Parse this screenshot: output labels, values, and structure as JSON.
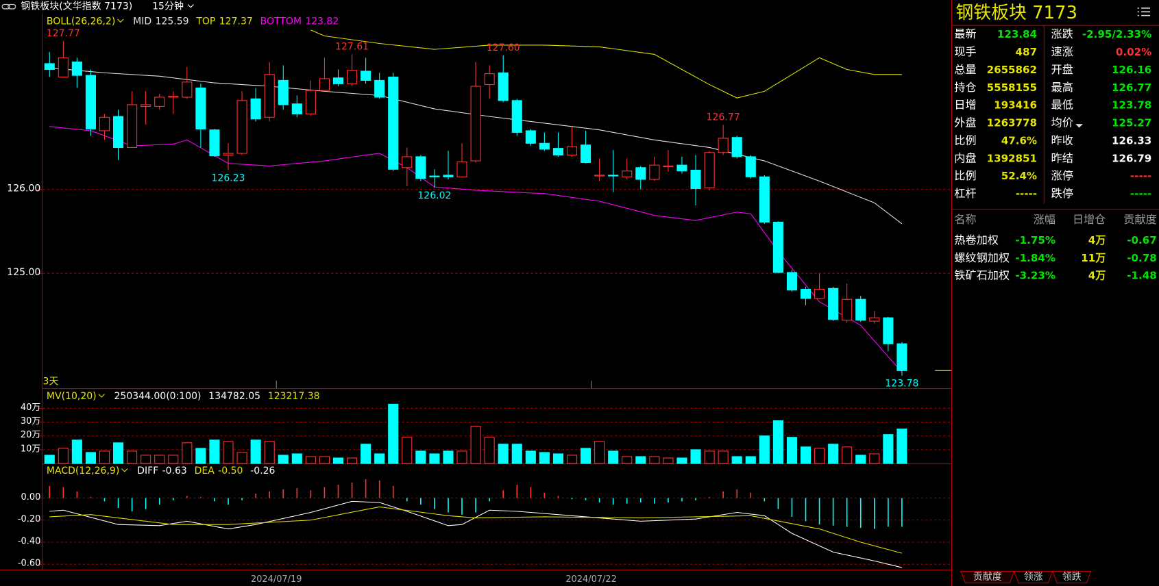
{
  "chart_data": [
    {
      "type": "candlestick",
      "title": "钢铁板块(文华指数 7173)",
      "period": "15分钟",
      "indicator": "BOLL(26,26,2)",
      "label": "3天",
      "up_color": "#ff3232",
      "down_color": "#00ffff",
      "grid": true,
      "open": [
        127.5,
        127.34,
        127.52,
        127.36,
        126.7,
        126.87,
        126.5,
        126.99,
        126.99,
        127.1,
        127.1,
        127.21,
        126.71,
        126.41,
        126.43,
        127.08,
        126.86,
        127.3,
        127.02,
        126.9,
        127.18,
        127.33,
        127.26,
        127.41,
        127.3,
        127.34,
        126.26,
        126.39,
        126.16,
        126.17,
        126.15,
        126.34,
        127.25,
        127.39,
        127.06,
        126.7,
        126.55,
        126.49,
        126.41,
        126.53,
        126.16,
        126.17,
        126.15,
        126.26,
        126.12,
        126.27,
        126.29,
        126.23,
        126.02,
        126.44,
        126.62,
        126.39,
        126.15,
        125.61,
        125.01,
        124.81,
        124.7,
        124.82,
        124.44,
        124.69,
        124.43,
        124.47,
        124.16
      ],
      "high": [
        127.64,
        127.77,
        127.57,
        127.43,
        126.9,
        126.95,
        127.17,
        127.17,
        127.14,
        127.17,
        127.46,
        127.26,
        126.72,
        126.55,
        127.17,
        127.21,
        127.52,
        127.48,
        127.12,
        127.3,
        127.57,
        127.43,
        127.61,
        127.57,
        127.39,
        127.39,
        126.5,
        126.41,
        126.24,
        126.46,
        126.55,
        127.52,
        127.48,
        127.6,
        127.08,
        126.72,
        126.68,
        126.68,
        126.75,
        126.7,
        126.37,
        126.47,
        126.37,
        126.28,
        126.39,
        126.47,
        126.39,
        126.41,
        126.46,
        126.77,
        126.64,
        126.41,
        126.17,
        125.62,
        125.04,
        124.84,
        125.0,
        124.84,
        124.88,
        124.73,
        124.55,
        124.48,
        124.18
      ],
      "low": [
        127.34,
        127.34,
        127.21,
        126.64,
        126.59,
        126.35,
        126.5,
        126.77,
        126.95,
        126.9,
        127.08,
        126.5,
        126.39,
        126.23,
        126.41,
        126.81,
        126.81,
        126.95,
        126.86,
        126.88,
        127.17,
        127.23,
        127.23,
        127.26,
        127.08,
        126.22,
        126.04,
        126.1,
        126.02,
        126.12,
        126.14,
        126.32,
        127.08,
        127.04,
        126.64,
        126.52,
        126.46,
        126.39,
        126.39,
        126.31,
        126.1,
        125.97,
        126.12,
        126.0,
        126.1,
        126.21,
        126.19,
        125.81,
        125.99,
        126.41,
        126.37,
        126.13,
        125.59,
        125.0,
        124.78,
        124.62,
        124.69,
        124.43,
        124.41,
        124.42,
        124.4,
        124.07,
        123.78
      ],
      "close": [
        127.43,
        127.57,
        127.36,
        126.72,
        126.86,
        126.5,
        127.01,
        127.01,
        127.1,
        127.11,
        127.28,
        126.72,
        126.4,
        126.43,
        127.06,
        126.84,
        127.37,
        127.01,
        126.9,
        127.18,
        127.32,
        127.26,
        127.42,
        127.3,
        127.1,
        126.24,
        126.39,
        126.13,
        126.15,
        126.15,
        126.33,
        127.23,
        127.38,
        127.06,
        126.68,
        126.55,
        126.48,
        126.41,
        126.51,
        126.32,
        126.17,
        126.16,
        126.22,
        126.12,
        126.29,
        126.28,
        126.22,
        126.01,
        126.44,
        126.61,
        126.39,
        126.15,
        125.61,
        125.01,
        124.8,
        124.7,
        124.81,
        124.45,
        124.69,
        124.44,
        124.47,
        124.16,
        123.84
      ],
      "series": [
        {
          "name": "MID",
          "color": "#e0e0e0",
          "x": [
            0,
            4,
            8,
            12,
            16,
            20,
            24,
            28,
            32,
            36,
            40,
            44,
            48,
            52,
            56,
            60,
            62
          ],
          "values": [
            127.45,
            127.39,
            127.35,
            127.27,
            127.23,
            127.17,
            127.12,
            126.96,
            126.87,
            126.79,
            126.71,
            126.59,
            126.5,
            126.34,
            126.1,
            125.84,
            125.59
          ]
        },
        {
          "name": "TOP",
          "color": "#e0e000",
          "x": [
            19,
            20,
            24,
            28,
            32,
            36,
            40,
            44,
            48,
            50,
            52,
            56,
            58,
            60,
            62
          ],
          "values": [
            127.9,
            127.83,
            127.74,
            127.67,
            127.72,
            127.72,
            127.7,
            127.61,
            127.25,
            127.09,
            127.17,
            127.57,
            127.43,
            127.37,
            127.37
          ]
        },
        {
          "name": "BOTTOM",
          "color": "#ff00ff",
          "x": [
            0,
            3,
            6,
            9,
            10,
            13,
            16,
            20,
            23,
            24,
            26,
            28,
            31,
            36,
            40,
            44,
            47,
            50,
            51,
            53,
            56,
            59,
            62
          ],
          "values": [
            126.75,
            126.7,
            126.52,
            126.54,
            126.59,
            126.31,
            126.28,
            126.34,
            126.41,
            126.43,
            126.26,
            126.03,
            125.99,
            125.95,
            125.86,
            125.69,
            125.63,
            125.73,
            125.71,
            125.26,
            124.66,
            124.38,
            123.82
          ]
        }
      ],
      "annotations": [
        127.77,
        127.61,
        {
          "value": 127.6,
          "label": "127.60"
        },
        126.77,
        126.23,
        126.02,
        123.78
      ],
      "ylim": [
        123.63,
        128.1
      ],
      "yticks": [
        {
          "value": 125,
          "label": "125.00"
        },
        {
          "value": 126,
          "label": "126.00"
        }
      ],
      "xticks": [
        {
          "value": 16.5,
          "label": "2024/07/19"
        },
        {
          "value": 39.4,
          "label": "2024/07/22"
        }
      ]
    },
    {
      "type": "bar",
      "indicator": "MV(10,20)",
      "legend": [
        "250344.00(0:100)",
        "134782.05",
        "123217.38"
      ],
      "legend_colors": [
        "#ffffff",
        "#ffffff",
        "#e0e000"
      ],
      "grid": true,
      "values": [
        60000,
        110000,
        170000,
        80000,
        90000,
        150000,
        90000,
        60000,
        60000,
        60000,
        150000,
        110000,
        170000,
        160000,
        80000,
        170000,
        160000,
        60000,
        70000,
        50000,
        50000,
        40000,
        40000,
        140000,
        70000,
        430000,
        190000,
        90000,
        70000,
        90000,
        90000,
        270000,
        190000,
        140000,
        140000,
        90000,
        80000,
        70000,
        60000,
        110000,
        160000,
        90000,
        50000,
        50000,
        50000,
        40000,
        40000,
        100000,
        90000,
        90000,
        50000,
        50000,
        200000,
        310000,
        190000,
        120000,
        110000,
        140000,
        120000,
        60000,
        70000,
        210000,
        250000
      ],
      "ylim": [
        0,
        535000
      ],
      "yticks": [
        {
          "value": 100000,
          "label": "10万"
        },
        {
          "value": 200000,
          "label": "20万"
        },
        {
          "value": 300000,
          "label": "30万"
        },
        {
          "value": 400000,
          "label": "40万"
        }
      ]
    },
    {
      "type": "macd",
      "indicator": "MACD(12,26,9)",
      "grid": true,
      "values": [
        0.11,
        0.1,
        0.06,
        0.01,
        -0.03,
        -0.09,
        -0.12,
        -0.1,
        -0.06,
        -0.02,
        0.02,
        0.01,
        -0.03,
        -0.06,
        -0.02,
        0.04,
        0.06,
        0.08,
        0.09,
        0.07,
        0.1,
        0.12,
        0.14,
        0.17,
        0.16,
        0.11,
        -0.03,
        -0.06,
        -0.1,
        -0.13,
        -0.15,
        -0.13,
        -0.03,
        0.07,
        0.12,
        0.1,
        0.05,
        0.02,
        -0.01,
        -0.02,
        -0.04,
        -0.06,
        -0.05,
        -0.04,
        -0.05,
        -0.04,
        -0.03,
        -0.02,
        0.01,
        0.06,
        0.08,
        0.05,
        -0.03,
        -0.1,
        -0.17,
        -0.21,
        -0.24,
        -0.25,
        -0.26,
        -0.27,
        -0.28,
        -0.26,
        -0.26
      ],
      "series": [
        {
          "name": "DIFF",
          "legend_value": "-0.63",
          "color": "#ffffff",
          "x": [
            0,
            1,
            5,
            8,
            10,
            13,
            15,
            19,
            22,
            24,
            26,
            29,
            30,
            32,
            34,
            39,
            43,
            47,
            50,
            52,
            54,
            57,
            60,
            62
          ],
          "values": [
            -0.12,
            -0.11,
            -0.24,
            -0.25,
            -0.21,
            -0.28,
            -0.24,
            -0.13,
            -0.03,
            -0.04,
            -0.12,
            -0.25,
            -0.24,
            -0.11,
            -0.12,
            -0.17,
            -0.21,
            -0.19,
            -0.13,
            -0.16,
            -0.32,
            -0.49,
            -0.57,
            -0.63
          ]
        },
        {
          "name": "DEA",
          "legend_value": "-0.50",
          "color": "#e0e000",
          "x": [
            0,
            3,
            9,
            13,
            19,
            24,
            29,
            31,
            36,
            43,
            51,
            56,
            59,
            62
          ],
          "values": [
            -0.17,
            -0.15,
            -0.24,
            -0.24,
            -0.2,
            -0.08,
            -0.16,
            -0.18,
            -0.17,
            -0.18,
            -0.16,
            -0.28,
            -0.4,
            -0.5
          ]
        }
      ],
      "ylim": [
        -0.65,
        0.3
      ],
      "yticks": [
        {
          "value": 0,
          "label": "0.00"
        },
        {
          "value": -0.2,
          "label": "-0.20"
        },
        {
          "value": -0.4,
          "label": "-0.40"
        },
        {
          "value": -0.6,
          "label": "-0.60"
        }
      ]
    }
  ],
  "quote": {
    "title": "钢铁板块  7173",
    "left": [
      {
        "label": "最新",
        "value": "123.84",
        "color": "#00e600"
      },
      {
        "label": "现手",
        "value": "487",
        "color": "#e6e600"
      },
      {
        "label": "总量",
        "value": "2655862",
        "color": "#e6e600"
      },
      {
        "label": "持仓",
        "value": "5558155",
        "color": "#e6e600"
      },
      {
        "label": "日增",
        "value": "193416",
        "color": "#e6e600"
      },
      {
        "label": "外盘",
        "value": "1263778",
        "color": "#e6e600"
      },
      {
        "label": "比例",
        "value": "47.6%",
        "color": "#e6e600"
      },
      {
        "label": "内盘",
        "value": "1392851",
        "color": "#e6e600"
      },
      {
        "label": "比例",
        "value": "52.4%",
        "color": "#e6e600"
      },
      {
        "label": "杠杆",
        "value": "-----",
        "color": "#e6e600"
      }
    ],
    "right": [
      {
        "label": "涨跌",
        "value": "-2.95/2.33%",
        "color": "#00e600"
      },
      {
        "label": "速涨",
        "value": "0.02%",
        "color": "#ff3232"
      },
      {
        "label": "开盘",
        "value": "126.16",
        "color": "#00e600"
      },
      {
        "label": "最高",
        "value": "126.77",
        "color": "#00e600"
      },
      {
        "label": "最低",
        "value": "123.78",
        "color": "#00e600"
      },
      {
        "label": "均价",
        "value": "125.27",
        "color": "#00e600"
      },
      {
        "label": "昨收",
        "value": "126.33",
        "color": "#ffffff"
      },
      {
        "label": "昨结",
        "value": "126.79",
        "color": "#ffffff"
      },
      {
        "label": "涨停",
        "value": "-----",
        "color": "#ff3232"
      },
      {
        "label": "跌停",
        "value": "-----",
        "color": "#00e600"
      }
    ]
  },
  "constituents": {
    "columns": [
      "名称",
      "涨幅",
      "日增仓",
      "贡献度"
    ],
    "colors": [
      "#ffffff",
      "#00e600",
      "#e6e600",
      "#00e600"
    ],
    "rows": [
      [
        "热卷加权",
        "-1.75%",
        "4万",
        "-0.67"
      ],
      [
        "螺纹钢加权",
        "-1.84%",
        "11万",
        "-0.78"
      ],
      [
        "铁矿石加权",
        "-3.23%",
        "4万",
        "-1.48"
      ]
    ]
  },
  "tabs": [
    "贡献度",
    "领涨",
    "领跌"
  ]
}
